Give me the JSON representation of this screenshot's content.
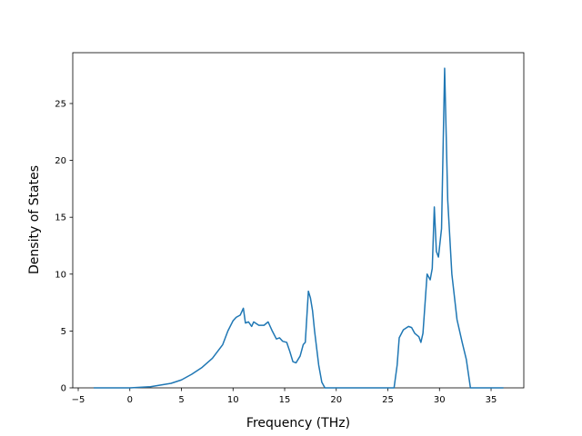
{
  "chart_data": {
    "type": "line",
    "x_label": "Frequency (THz)",
    "y_label": "Density of States",
    "x": [
      -3.5,
      0,
      2,
      4,
      5,
      6,
      7,
      8,
      9,
      9.5,
      10,
      10.3,
      10.7,
      11,
      11.2,
      11.5,
      11.8,
      12,
      12.5,
      13,
      13.4,
      13.8,
      14.2,
      14.5,
      14.8,
      15.2,
      15.5,
      15.8,
      16.1,
      16.5,
      16.8,
      17,
      17.3,
      17.5,
      17.7,
      17.9,
      18.3,
      18.6,
      18.9,
      25.6,
      25.9,
      26.1,
      26.5,
      27,
      27.3,
      27.6,
      28,
      28.2,
      28.4,
      28.8,
      29.1,
      29.3,
      29.5,
      29.7,
      29.9,
      30.2,
      30.5,
      30.8,
      31.2,
      31.7,
      32.2,
      32.6,
      33,
      36.2
    ],
    "series": [
      {
        "color": "#1f77b4",
        "values": [
          0,
          0,
          0.1,
          0.4,
          0.7,
          1.2,
          1.8,
          2.6,
          3.8,
          5.0,
          5.9,
          6.2,
          6.4,
          7.0,
          5.7,
          5.8,
          5.4,
          5.8,
          5.5,
          5.5,
          5.8,
          5.0,
          4.3,
          4.4,
          4.1,
          4.0,
          3.2,
          2.3,
          2.2,
          2.8,
          3.8,
          4.0,
          8.5,
          7.9,
          6.8,
          5.0,
          2.0,
          0.5,
          0,
          0,
          2.0,
          4.4,
          5.1,
          5.4,
          5.3,
          4.8,
          4.5,
          4.0,
          4.8,
          10.0,
          9.5,
          10.5,
          15.9,
          12.0,
          11.5,
          14.0,
          28.1,
          16.5,
          10.0,
          6.0,
          4.0,
          2.5,
          0,
          0
        ]
      }
    ],
    "xlim": [
      -5.53,
      38.17
    ],
    "xticks": [
      {
        "value": -5,
        "label": "−5"
      },
      0,
      5,
      10,
      15,
      20,
      25,
      30,
      35
    ],
    "ylim": [
      0,
      29.47
    ],
    "yticks": [
      0,
      5,
      10,
      15,
      20,
      25
    ]
  }
}
